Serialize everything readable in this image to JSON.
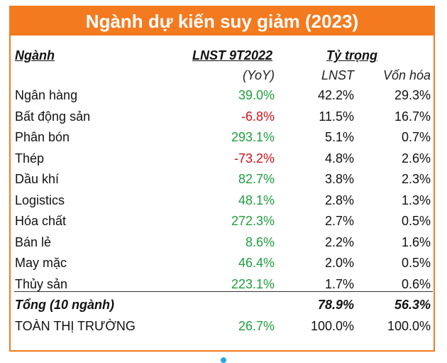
{
  "title": "Ngành dự kiến suy giảm (2023)",
  "headers": {
    "sector": "Ngành",
    "profit": "LNST 9T2022",
    "profit_sub": "(YoY)",
    "weight": "Tỷ trọng",
    "weight_profit": "LNST",
    "weight_cap": "Vốn hóa"
  },
  "rows": [
    {
      "sector": "Ngân hàng",
      "yoy": "39.0%",
      "lnst": "42.2%",
      "cap": "29.3%",
      "trend": "up"
    },
    {
      "sector": "Bất động sản",
      "yoy": "-6.8%",
      "lnst": "11.5%",
      "cap": "16.7%",
      "trend": "down"
    },
    {
      "sector": "Phân bón",
      "yoy": "293.1%",
      "lnst": "5.1%",
      "cap": "0.7%",
      "trend": "up"
    },
    {
      "sector": "Thép",
      "yoy": "-73.2%",
      "lnst": "4.8%",
      "cap": "2.6%",
      "trend": "down"
    },
    {
      "sector": "Dầu khí",
      "yoy": "82.7%",
      "lnst": "3.8%",
      "cap": "2.3%",
      "trend": "up"
    },
    {
      "sector": "Logistics",
      "yoy": "48.1%",
      "lnst": "2.8%",
      "cap": "1.3%",
      "trend": "up"
    },
    {
      "sector": "Hóa chất",
      "yoy": "272.3%",
      "lnst": "2.7%",
      "cap": "0.5%",
      "trend": "up"
    },
    {
      "sector": "Bán lẻ",
      "yoy": "8.6%",
      "lnst": "2.2%",
      "cap": "1.6%",
      "trend": "up"
    },
    {
      "sector": "May mặc",
      "yoy": "46.4%",
      "lnst": "2.0%",
      "cap": "0.5%",
      "trend": "up"
    },
    {
      "sector": "Thủy sản",
      "yoy": "223.1%",
      "lnst": "1.7%",
      "cap": "0.6%",
      "trend": "up"
    }
  ],
  "total": {
    "label": "Tổng (10 ngành)",
    "lnst": "78.9%",
    "cap": "56.3%"
  },
  "market": {
    "label": "TOÀN THỊ TRƯỜNG",
    "yoy": "26.7%",
    "lnst": "100.0%",
    "cap": "100.0%"
  },
  "colors": {
    "accent": "#f47a1f",
    "positive": "#1e9e3e",
    "negative": "#d3101a"
  }
}
